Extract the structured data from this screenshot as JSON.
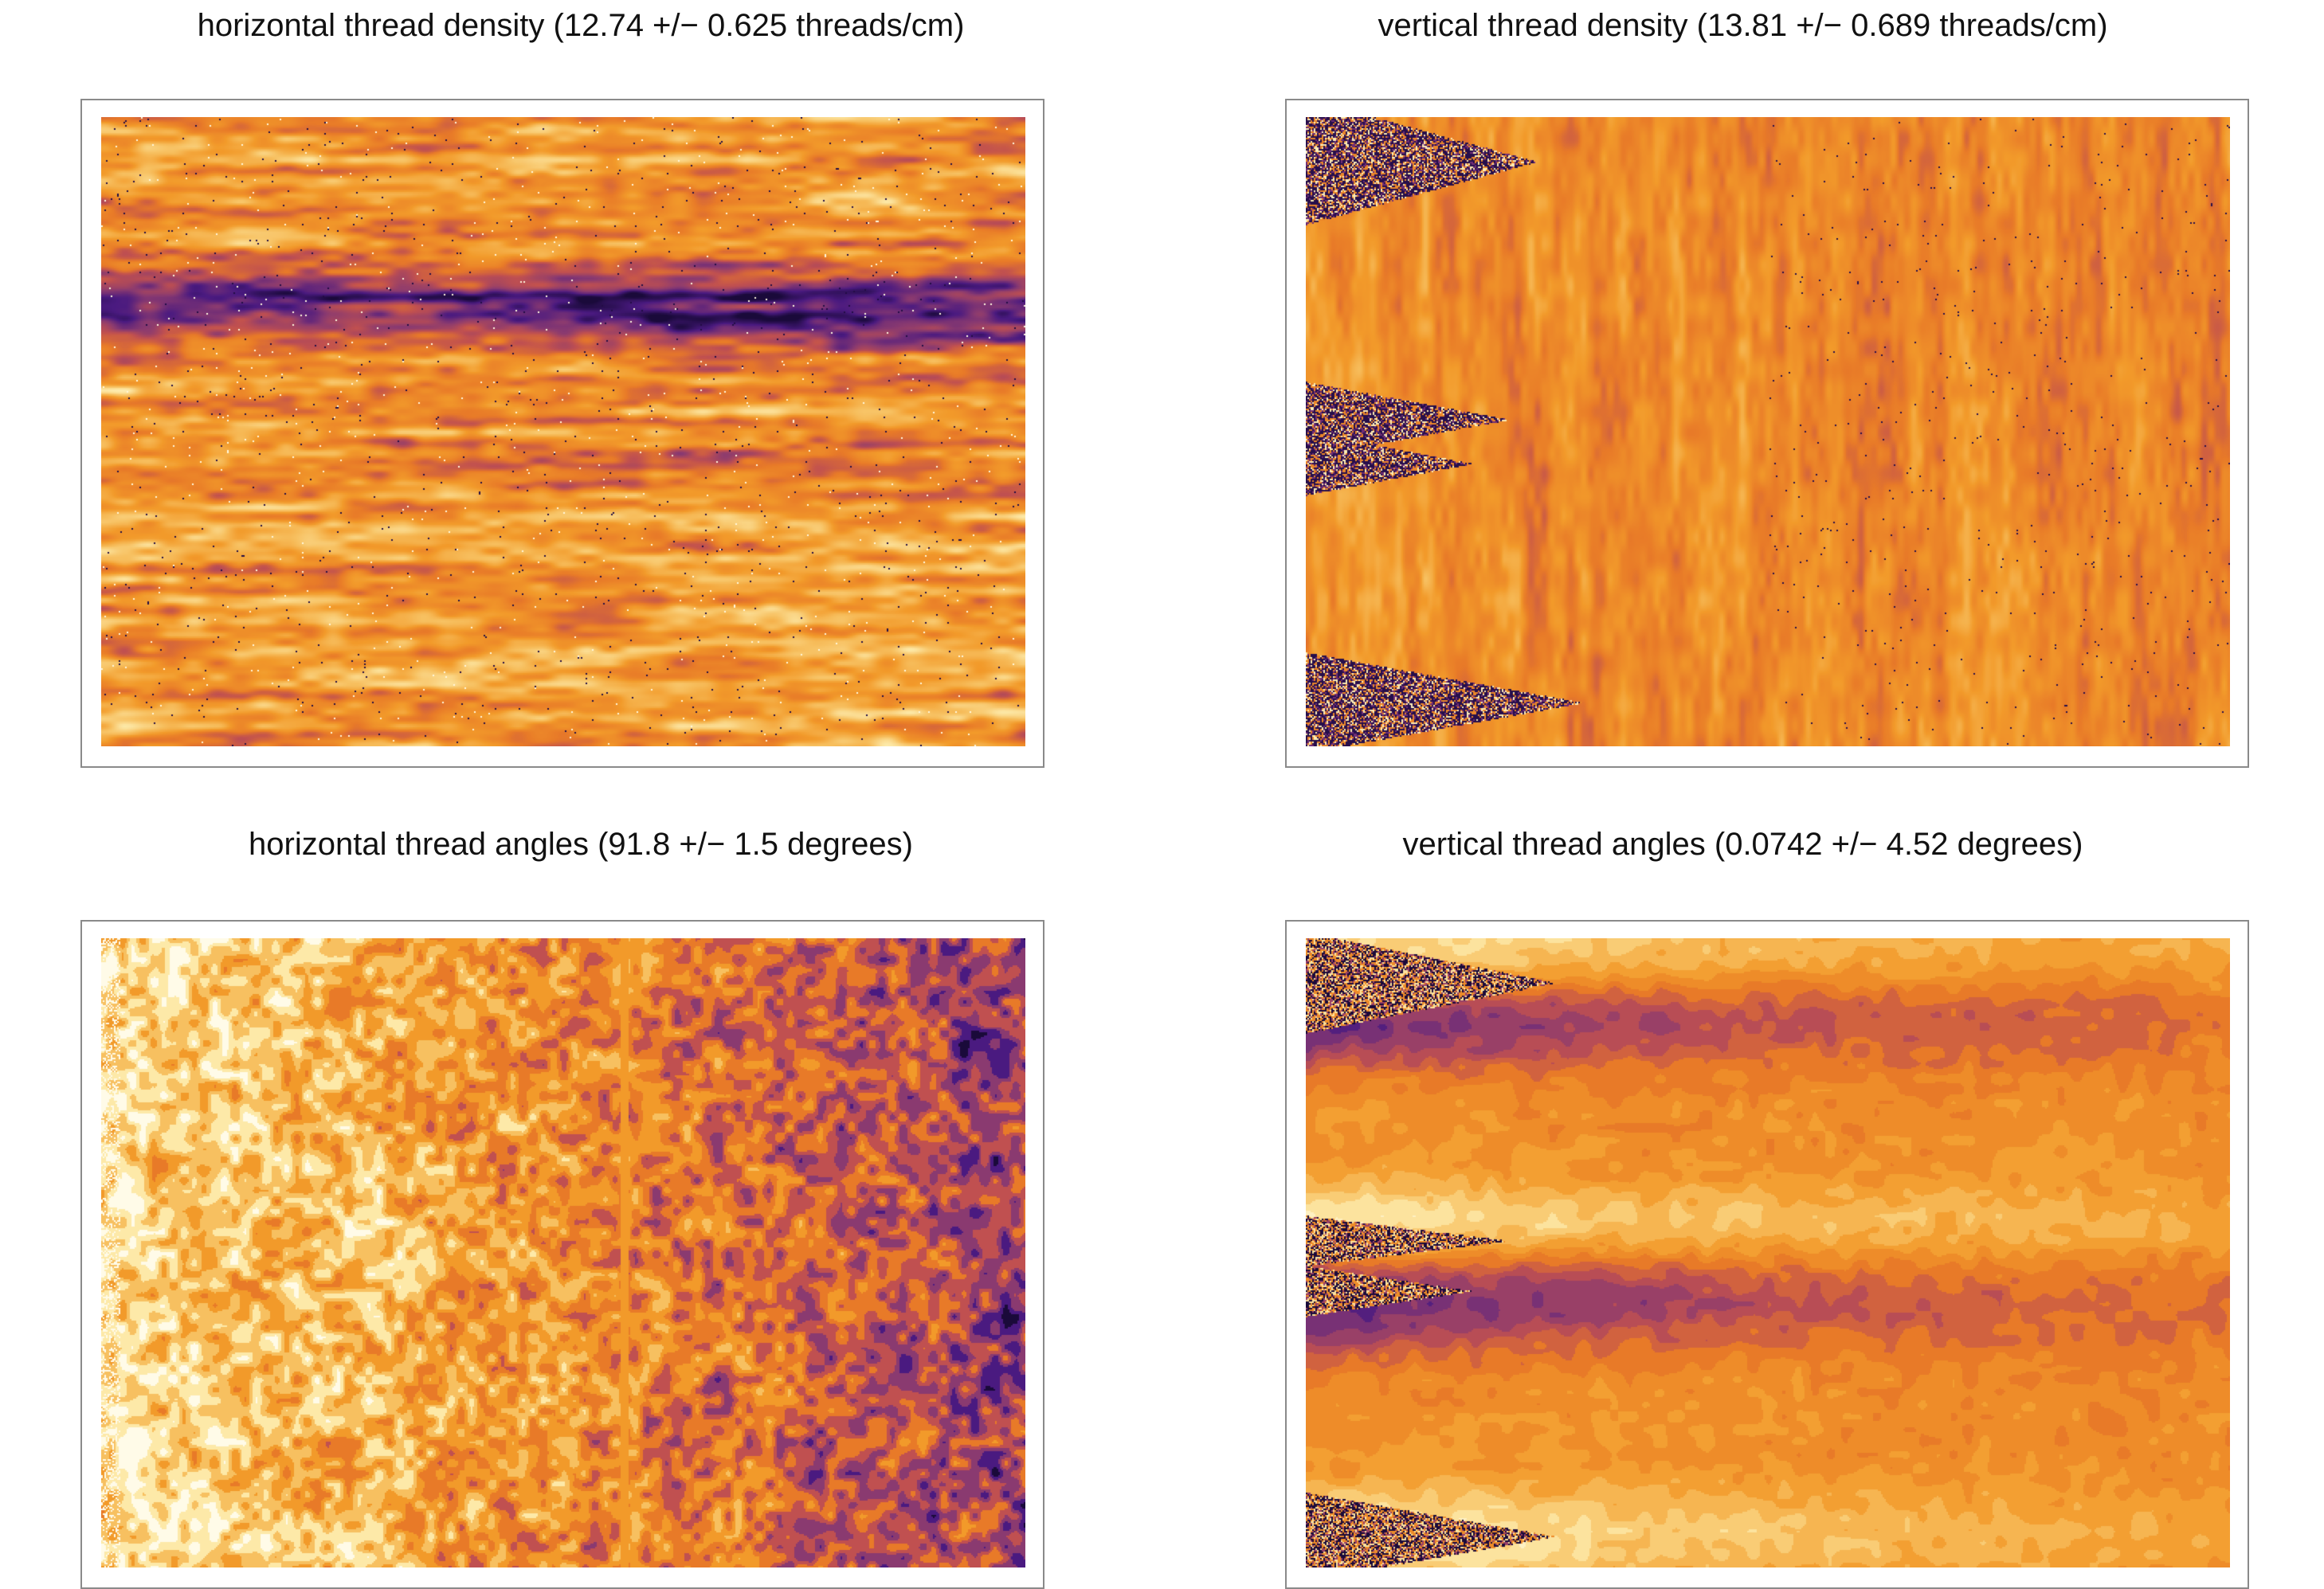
{
  "figure": {
    "panels": [
      {
        "id": "h-density",
        "title": "horizontal thread density (12.74 +/− 0.625 threads/cm)"
      },
      {
        "id": "v-density",
        "title": "vertical thread density (13.81 +/− 0.689 threads/cm)"
      },
      {
        "id": "h-angles",
        "title": "horizontal thread angles (91.8 +/− 1.5 degrees)"
      },
      {
        "id": "v-angles",
        "title": "vertical thread angles (0.0742 +/− 4.52 degrees)"
      }
    ],
    "colors": {
      "colormap": [
        "#1a0a3a",
        "#4a1a80",
        "#8a3a70",
        "#c05050",
        "#e87a28",
        "#f29a2a",
        "#f7c060",
        "#fde9a8",
        "#fffbe8"
      ],
      "frame": "#8a8a8a"
    }
  }
}
